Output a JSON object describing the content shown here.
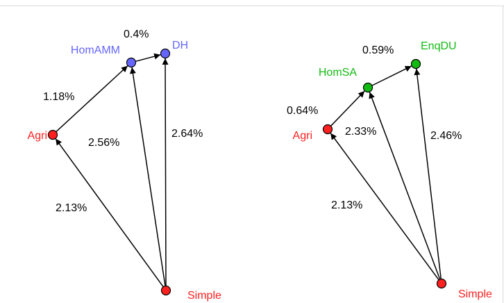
{
  "colors": {
    "red": "#ff2020",
    "blue": "#6666ff",
    "green": "#11bb11",
    "edge": "#000000"
  },
  "graphs": [
    {
      "id": "left",
      "nodes": [
        {
          "id": "Agri",
          "label": "Agri",
          "color": "red"
        },
        {
          "id": "HomAMM",
          "label": "HomAMM",
          "color": "blue"
        },
        {
          "id": "DH",
          "label": "DH",
          "color": "blue"
        },
        {
          "id": "Simple",
          "label": "Simple",
          "color": "red"
        }
      ],
      "edges": [
        {
          "from": "Simple",
          "to": "Agri",
          "label": "2.13%"
        },
        {
          "from": "Simple",
          "to": "HomAMM",
          "label": "2.56%"
        },
        {
          "from": "Simple",
          "to": "DH",
          "label": "2.64%"
        },
        {
          "from": "Agri",
          "to": "HomAMM",
          "label": "1.18%"
        },
        {
          "from": "HomAMM",
          "to": "DH",
          "label": "0.4%"
        }
      ]
    },
    {
      "id": "right",
      "nodes": [
        {
          "id": "Agri",
          "label": "Agri",
          "color": "red"
        },
        {
          "id": "HomSA",
          "label": "HomSA",
          "color": "green"
        },
        {
          "id": "EnqDU",
          "label": "EnqDU",
          "color": "green"
        },
        {
          "id": "Simple",
          "label": "Simple",
          "color": "red"
        }
      ],
      "edges": [
        {
          "from": "Simple",
          "to": "Agri",
          "label": "2.13%"
        },
        {
          "from": "Simple",
          "to": "HomSA",
          "label": "2.33%"
        },
        {
          "from": "Simple",
          "to": "EnqDU",
          "label": "2.46%"
        },
        {
          "from": "Agri",
          "to": "HomSA",
          "label": "0.64%"
        },
        {
          "from": "HomSA",
          "to": "EnqDU",
          "label": "0.59%"
        }
      ]
    }
  ]
}
